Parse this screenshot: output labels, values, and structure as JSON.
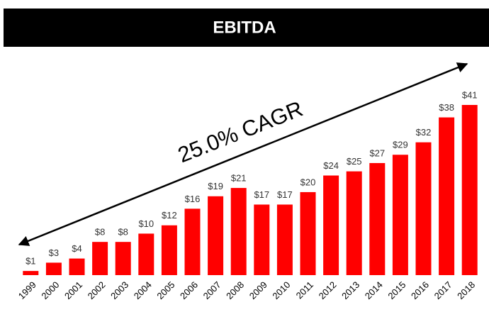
{
  "chart_data": {
    "type": "bar",
    "title": "EBITDA",
    "annotation": "25.0% CAGR",
    "categories": [
      "1999",
      "2000",
      "2001",
      "2002",
      "2003",
      "2004",
      "2005",
      "2006",
      "2007",
      "2008",
      "2009",
      "2010",
      "2011",
      "2012",
      "2013",
      "2014",
      "2015",
      "2016",
      "2017",
      "2018"
    ],
    "values": [
      1,
      3,
      4,
      8,
      8,
      10,
      12,
      16,
      19,
      21,
      17,
      17,
      20,
      24,
      25,
      27,
      29,
      32,
      38,
      41
    ],
    "value_labels": [
      "$1",
      "$3",
      "$4",
      "$8",
      "$8",
      "$10",
      "$12",
      "$16",
      "$19",
      "$21",
      "$17",
      "$17",
      "$20",
      "$24",
      "$25",
      "$27",
      "$29",
      "$32",
      "$38",
      "$41"
    ],
    "color": "#ff0000"
  }
}
